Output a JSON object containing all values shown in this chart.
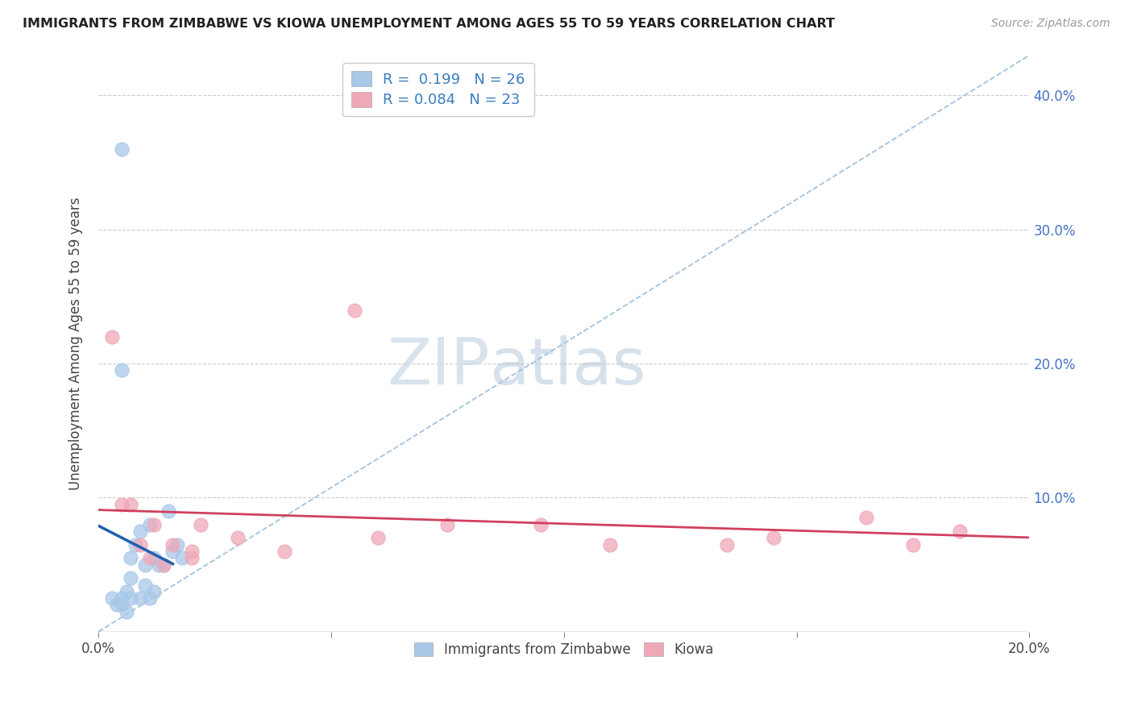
{
  "title": "IMMIGRANTS FROM ZIMBABWE VS KIOWA UNEMPLOYMENT AMONG AGES 55 TO 59 YEARS CORRELATION CHART",
  "source": "Source: ZipAtlas.com",
  "ylabel": "Unemployment Among Ages 55 to 59 years",
  "watermark_zip": "ZIP",
  "watermark_atlas": "atlas",
  "xlim": [
    0.0,
    0.2
  ],
  "ylim": [
    0.0,
    0.43
  ],
  "xticks": [
    0.0,
    0.05,
    0.1,
    0.15,
    0.2
  ],
  "xtick_labels": [
    "0.0%",
    "",
    "",
    "",
    "20.0%"
  ],
  "yticks": [
    0.0,
    0.1,
    0.2,
    0.3,
    0.4
  ],
  "right_ytick_labels": [
    "",
    "10.0%",
    "20.0%",
    "30.0%",
    "40.0%"
  ],
  "legend_line1": "R =  0.199   N = 26",
  "legend_line2": "R = 0.084   N = 23",
  "color_blue": "#a8c8e8",
  "color_pink": "#f0a8b8",
  "trend_blue": "#2060b0",
  "trend_pink": "#d04060",
  "diag_color": "#99bbdd",
  "blue_x": [
    0.005,
    0.005,
    0.007,
    0.008,
    0.009,
    0.01,
    0.011,
    0.012,
    0.013,
    0.014,
    0.015,
    0.016,
    0.017,
    0.018,
    0.005,
    0.006,
    0.007,
    0.009,
    0.01,
    0.011,
    0.012,
    0.003,
    0.004,
    0.005,
    0.006,
    0.007
  ],
  "blue_y": [
    0.36,
    0.195,
    0.055,
    0.065,
    0.075,
    0.05,
    0.08,
    0.055,
    0.05,
    0.05,
    0.09,
    0.06,
    0.065,
    0.055,
    0.025,
    0.03,
    0.04,
    0.025,
    0.035,
    0.025,
    0.03,
    0.025,
    0.02,
    0.02,
    0.015,
    0.025
  ],
  "pink_x": [
    0.003,
    0.005,
    0.007,
    0.009,
    0.011,
    0.012,
    0.014,
    0.016,
    0.02,
    0.022,
    0.03,
    0.055,
    0.075,
    0.095,
    0.11,
    0.135,
    0.145,
    0.165,
    0.175,
    0.185,
    0.06,
    0.04,
    0.02
  ],
  "pink_y": [
    0.22,
    0.095,
    0.095,
    0.065,
    0.055,
    0.08,
    0.05,
    0.065,
    0.06,
    0.08,
    0.07,
    0.24,
    0.08,
    0.08,
    0.065,
    0.065,
    0.07,
    0.085,
    0.065,
    0.075,
    0.07,
    0.06,
    0.055
  ]
}
